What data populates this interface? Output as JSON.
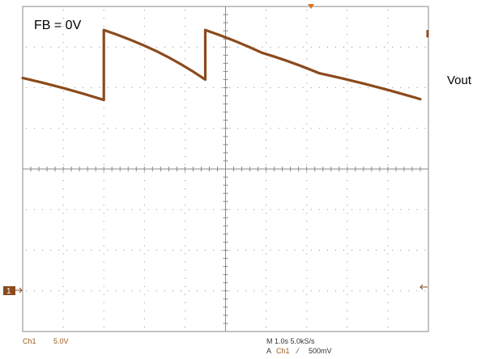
{
  "annotation": "FB = 0V",
  "signal_label": "Vout",
  "channel": {
    "marker": "1",
    "name": "Ch1",
    "scale": "5.0V"
  },
  "timebase": {
    "text": "M 1.0s 5.0kS/s"
  },
  "trigger": {
    "prefix": "A",
    "source": "Ch1",
    "slope_symbol": "⁄",
    "level": "500mV"
  },
  "colors": {
    "trace": "#8b4a1c",
    "grid": "#8a8a8a",
    "trigger_marker": "#e07020",
    "channel_text": "#9c5a1a"
  },
  "chart_data": {
    "type": "line",
    "title": "",
    "xlabel": "",
    "ylabel": "",
    "x_unit": "s",
    "y_unit": "V",
    "xlim": [
      0,
      10
    ],
    "ylim": [
      -20,
      20
    ],
    "grid": true,
    "series": [
      {
        "name": "",
        "x": [
          0,
          2.0,
          2.0,
          3.3,
          4.5,
          4.5,
          5.9,
          7.3,
          9.8
        ],
        "y": [
          11.2,
          8.5,
          17.1,
          14.5,
          11.0,
          17.1,
          14.3,
          11.8,
          8.6
        ]
      }
    ]
  }
}
